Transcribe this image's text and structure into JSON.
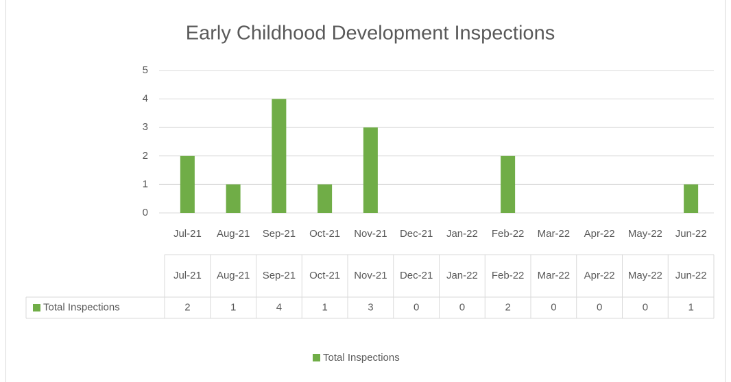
{
  "chart_data": {
    "type": "bar",
    "title": "Early Childhood Development Inspections",
    "categories": [
      "Jul-21",
      "Aug-21",
      "Sep-21",
      "Oct-21",
      "Nov-21",
      "Dec-21",
      "Jan-22",
      "Feb-22",
      "Mar-22",
      "Apr-22",
      "May-22",
      "Jun-22"
    ],
    "series": [
      {
        "name": "Total Inspections",
        "color": "#70ad47",
        "values": [
          2,
          1,
          4,
          1,
          3,
          0,
          0,
          2,
          0,
          0,
          0,
          1
        ]
      }
    ],
    "ylim": [
      0,
      5
    ],
    "yticks": [
      0,
      1,
      2,
      3,
      4,
      5
    ],
    "grid": true,
    "legend": "bottom",
    "data_table": true
  }
}
